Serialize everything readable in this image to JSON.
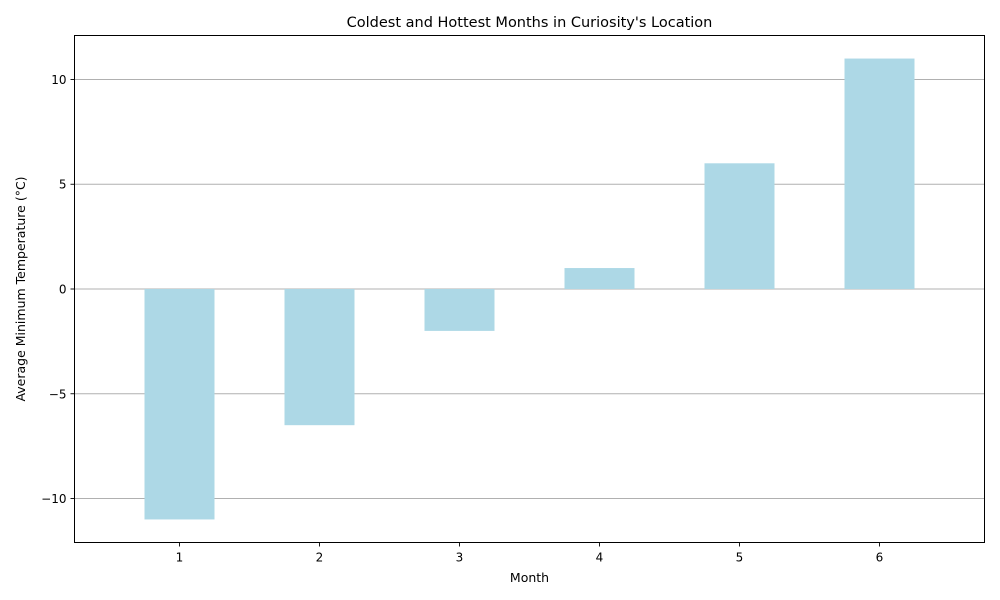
{
  "chart_data": {
    "type": "bar",
    "title": "Coldest and Hottest Months in Curiosity's Location",
    "xlabel": "Month",
    "ylabel": "Average Minimum Temperature (°C)",
    "categories": [
      "1",
      "2",
      "3",
      "4",
      "5",
      "6"
    ],
    "values": [
      -11,
      -6.5,
      -2,
      1,
      6,
      11
    ],
    "ylim": [
      -12.1,
      12.1
    ],
    "yticks": [
      -10,
      -5,
      0,
      5,
      10
    ],
    "ytick_labels": [
      "−10",
      "−5",
      "0",
      "5",
      "10"
    ],
    "grid": "y-axis only",
    "bar_color": "#add8e6",
    "grid_color": "#b0b0b0"
  }
}
